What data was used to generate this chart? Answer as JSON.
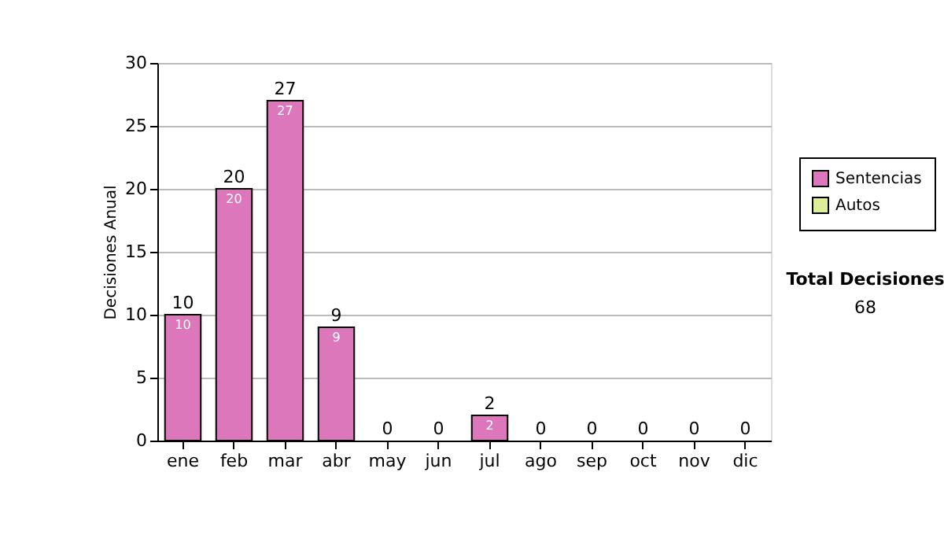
{
  "chart_data": {
    "type": "bar",
    "stacked": true,
    "ylabel": "Decisiones Anual",
    "categories": [
      "ene",
      "feb",
      "mar",
      "abr",
      "may",
      "jun",
      "jul",
      "ago",
      "sep",
      "oct",
      "nov",
      "dic"
    ],
    "series": [
      {
        "name": "Sentencias",
        "color": "#dd77bb",
        "values": [
          10,
          20,
          27,
          9,
          0,
          0,
          2,
          0,
          0,
          0,
          0,
          0
        ],
        "value_labels": [
          "10",
          "20",
          "27",
          "9",
          null,
          null,
          "2",
          null,
          null,
          null,
          null,
          null
        ]
      },
      {
        "name": "Autos",
        "color": "#ddee99",
        "values": [
          0,
          0,
          0,
          0,
          0,
          0,
          0,
          0,
          0,
          0,
          0,
          0
        ]
      }
    ],
    "totals": [
      "10",
      "20",
      "27",
      "9",
      "0",
      "0",
      "2",
      "0",
      "0",
      "0",
      "0",
      "0"
    ],
    "ylim": [
      0,
      30
    ],
    "yticks": [
      0,
      5,
      10,
      15,
      20,
      25,
      30
    ],
    "grid": "y",
    "legend": "right",
    "annotations": [
      "Total Decisiones",
      "68"
    ]
  }
}
